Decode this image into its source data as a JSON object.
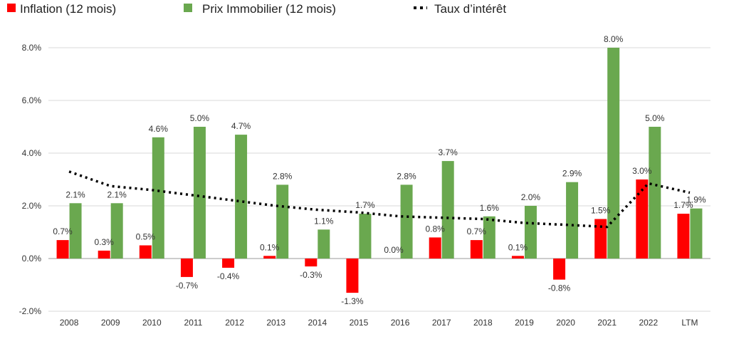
{
  "chart_data": {
    "type": "bar",
    "categories": [
      "2008",
      "2009",
      "2010",
      "2011",
      "2012",
      "2013",
      "2014",
      "2015",
      "2016",
      "2017",
      "2018",
      "2019",
      "2020",
      "2021",
      "2022",
      "LTM"
    ],
    "series": [
      {
        "name": "Inflation (12 mois)",
        "kind": "bar",
        "color": "#ff0000",
        "values": [
          0.7,
          0.3,
          0.5,
          -0.7,
          -0.35,
          0.1,
          -0.3,
          -1.3,
          0.0,
          0.8,
          0.7,
          0.1,
          -0.8,
          1.5,
          3.0,
          1.7
        ],
        "labels": [
          "0.7%",
          "0.3%",
          "0.5%",
          "-0.7%",
          "-0.4%",
          "0.1%",
          "-0.3%",
          "-1.3%",
          "0.0%",
          "0.8%",
          "0.7%",
          "0.1%",
          "-0.8%",
          "1.5%",
          "3.0%",
          "1.7%"
        ]
      },
      {
        "name": "Prix Immobilier (12 mois)",
        "kind": "bar",
        "color": "#6aa84f",
        "values": [
          2.1,
          2.1,
          4.6,
          5.0,
          4.7,
          2.8,
          1.1,
          1.7,
          2.8,
          3.7,
          1.6,
          2.0,
          2.9,
          8.0,
          5.0,
          1.9
        ],
        "labels": [
          "2.1%",
          "2.1%",
          "4.6%",
          "5.0%",
          "4.7%",
          "2.8%",
          "1.1%",
          "1.7%",
          "2.8%",
          "3.7%",
          "1.6%",
          "2.0%",
          "2.9%",
          "8.0%",
          "5.0%",
          "1.9%"
        ]
      },
      {
        "name": "Taux d’intérêt",
        "kind": "line",
        "style": "dotted",
        "color": "#000000",
        "values": [
          3.3,
          2.75,
          2.6,
          2.4,
          2.2,
          2.0,
          1.85,
          1.75,
          1.6,
          1.55,
          1.5,
          1.35,
          1.28,
          1.2,
          2.85,
          2.5
        ]
      }
    ],
    "title": "",
    "xlabel": "",
    "ylabel": "",
    "ylim": [
      -2.0,
      8.0
    ],
    "yticks": [
      "-2.0%",
      "0.0%",
      "2.0%",
      "4.0%",
      "6.0%",
      "8.0%"
    ],
    "ytick_values": [
      -2,
      0,
      2,
      4,
      6,
      8
    ],
    "grid": true,
    "legend_position": "top-left"
  }
}
